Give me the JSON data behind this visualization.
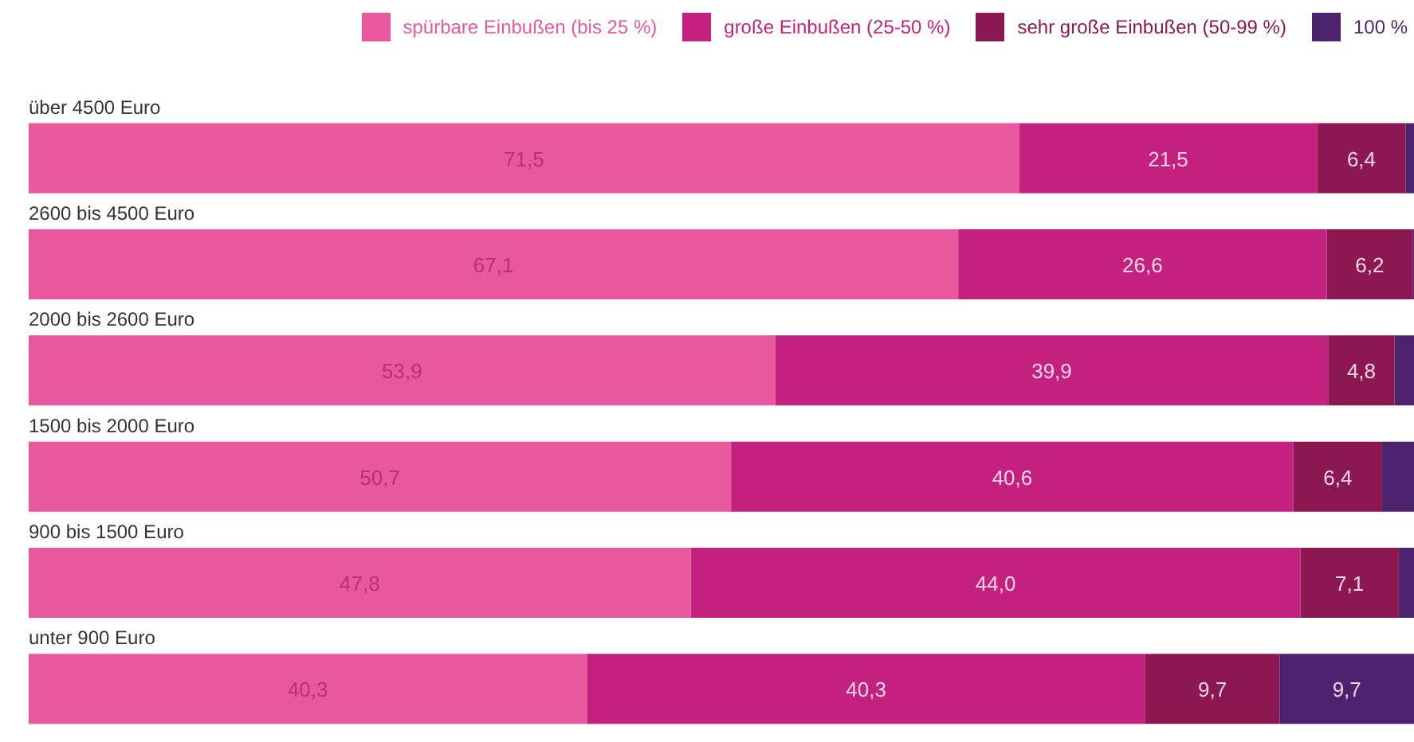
{
  "chart_data": {
    "type": "bar",
    "orientation": "horizontal",
    "stacked": true,
    "categories": [
      "über 4500 Euro",
      "2600 bis 4500 Euro",
      "2000 bis 2600 Euro",
      "1500 bis 2000 Euro",
      "900 bis 1500 Euro",
      "unter 900 Euro"
    ],
    "xlim": [
      0,
      100
    ],
    "tick_labels": false,
    "grid": false,
    "legend": "top right",
    "series": [
      {
        "name": "spürbare Einbußen (bis 25 %)",
        "color": "#e8589c",
        "values": [
          71.5,
          67.1,
          53.9,
          50.7,
          47.8,
          40.3
        ],
        "value_labels": [
          "71,5",
          "67,1",
          "53,9",
          "50,7",
          "47,8",
          "40,3"
        ]
      },
      {
        "name": "große Einbußen (25-50 %)",
        "color": "#c3207f",
        "values": [
          21.5,
          26.6,
          39.9,
          40.6,
          44.0,
          40.3
        ],
        "value_labels": [
          "21,5",
          "26,6",
          "39,9",
          "40,6",
          "44,0",
          "40,3"
        ]
      },
      {
        "name": "sehr große Einbußen (50-99 %)",
        "color": "#8c1852",
        "values": [
          6.4,
          6.2,
          4.8,
          6.4,
          7.1,
          9.7
        ],
        "value_labels": [
          "6,4",
          "6,2",
          "4,8",
          "6,4",
          "7,1",
          "9,7"
        ]
      },
      {
        "name": "100 %",
        "color": "#4b236f",
        "values": [
          0.6,
          0.1,
          1.4,
          2.3,
          1.1,
          9.7
        ],
        "value_labels": [
          null,
          null,
          null,
          null,
          null,
          "9,7"
        ]
      }
    ]
  }
}
